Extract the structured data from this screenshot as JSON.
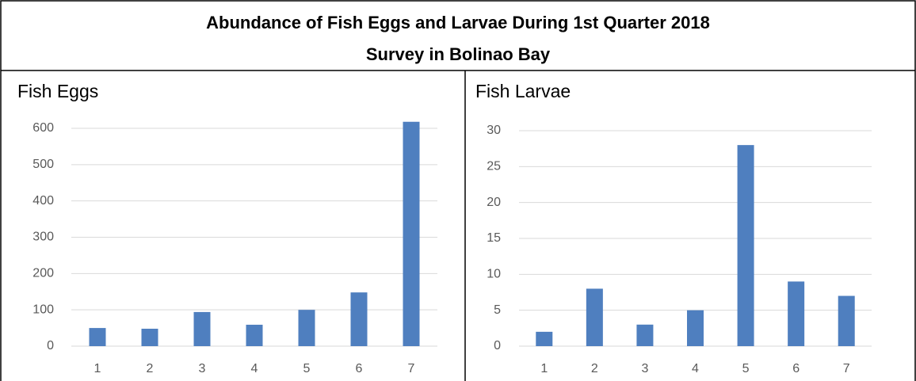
{
  "header": {
    "title_lines": [
      "Abundance of Fish Eggs and Larvae During 1st Quarter 2018",
      "Survey in Bolinao Bay"
    ]
  },
  "chart_data": [
    {
      "type": "bar",
      "title": "Fish Eggs",
      "categories": [
        "1",
        "2",
        "3",
        "4",
        "5",
        "6",
        "7"
      ],
      "values": [
        50,
        48,
        94,
        59,
        100,
        148,
        618
      ],
      "color": "#4f7fbf",
      "ylim": [
        0,
        600
      ],
      "yticks": [
        0,
        100,
        200,
        300,
        400,
        500,
        600
      ],
      "grid": true
    },
    {
      "type": "bar",
      "title": "Fish Larvae",
      "categories": [
        "1",
        "2",
        "3",
        "4",
        "5",
        "6",
        "7"
      ],
      "values": [
        2,
        8,
        3,
        5,
        28,
        9,
        7
      ],
      "color": "#4f7fbf",
      "ylim": [
        0,
        30
      ],
      "yticks": [
        0,
        5,
        10,
        15,
        20,
        25,
        30
      ],
      "grid": true
    }
  ]
}
